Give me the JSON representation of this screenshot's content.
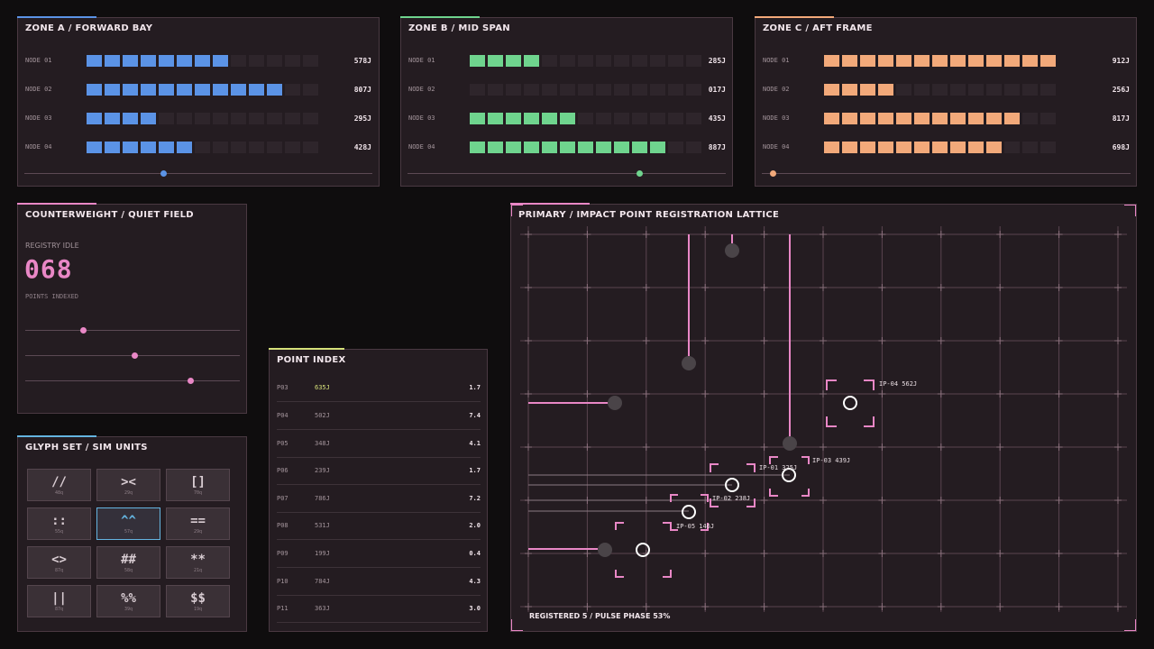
{
  "zones": [
    {
      "title": "ZONE A / FORWARD BAY",
      "color": "#5b93e6",
      "rows": [
        {
          "label": "NODE 01",
          "value": "578J",
          "filled": 8
        },
        {
          "label": "NODE 02",
          "value": "807J",
          "filled": 11
        },
        {
          "label": "NODE 03",
          "value": "295J",
          "filled": 4
        },
        {
          "label": "NODE 04",
          "value": "428J",
          "filled": 6
        }
      ],
      "slider": 0.4
    },
    {
      "title": "ZONE B / MID SPAN",
      "color": "#6fd48e",
      "rows": [
        {
          "label": "NODE 01",
          "value": "285J",
          "filled": 4
        },
        {
          "label": "NODE 02",
          "value": "017J",
          "filled": 0
        },
        {
          "label": "NODE 03",
          "value": "435J",
          "filled": 6
        },
        {
          "label": "NODE 04",
          "value": "887J",
          "filled": 11
        }
      ],
      "slider": 0.73
    },
    {
      "title": "ZONE C / AFT FRAME",
      "color": "#f2a97a",
      "rows": [
        {
          "label": "NODE 01",
          "value": "912J",
          "filled": 13
        },
        {
          "label": "NODE 02",
          "value": "256J",
          "filled": 4
        },
        {
          "label": "NODE 03",
          "value": "817J",
          "filled": 11
        },
        {
          "label": "NODE 04",
          "value": "698J",
          "filled": 10
        }
      ],
      "slider": 0.03
    }
  ],
  "counterweight": {
    "title": "COUNTERWEIGHT / QUIET FIELD",
    "status": "REGISTRY IDLE",
    "count": "068",
    "caption": "POINTS INDEXED",
    "accent": "#e987c6",
    "sliders": [
      0.27,
      0.51,
      0.77
    ]
  },
  "glyphs": {
    "title": "GLYPH SET / SIM UNITS",
    "accent": "#64b4e0",
    "items": [
      {
        "symbol": "//",
        "unit": "48q"
      },
      {
        "symbol": "><",
        "unit": "29q"
      },
      {
        "symbol": "[]",
        "unit": "70q"
      },
      {
        "symbol": "::",
        "unit": "55q"
      },
      {
        "symbol": "^^",
        "unit": "57q",
        "selected": true
      },
      {
        "symbol": "==",
        "unit": "29q"
      },
      {
        "symbol": "<>",
        "unit": "87q"
      },
      {
        "symbol": "##",
        "unit": "58q"
      },
      {
        "symbol": "**",
        "unit": "21q"
      },
      {
        "symbol": "||",
        "unit": "87q"
      },
      {
        "symbol": "%%",
        "unit": "39q"
      },
      {
        "symbol": "$$",
        "unit": "19q"
      }
    ]
  },
  "point_index": {
    "title": "POINT INDEX",
    "accent": "#d6e07a",
    "rows": [
      {
        "id": "P03",
        "energy": "635J",
        "score": "1.7",
        "highlight": true
      },
      {
        "id": "P04",
        "energy": "502J",
        "score": "7.4"
      },
      {
        "id": "P05",
        "energy": "348J",
        "score": "4.1"
      },
      {
        "id": "P06",
        "energy": "239J",
        "score": "1.7"
      },
      {
        "id": "P07",
        "energy": "786J",
        "score": "7.2"
      },
      {
        "id": "P08",
        "energy": "531J",
        "score": "2.0"
      },
      {
        "id": "P09",
        "energy": "199J",
        "score": "0.4"
      },
      {
        "id": "P10",
        "energy": "784J",
        "score": "4.3"
      },
      {
        "id": "P11",
        "energy": "363J",
        "score": "3.0"
      }
    ]
  },
  "lattice": {
    "title": "PRIMARY / IMPACT POINT REGISTRATION LATTICE",
    "footer": "REGISTERED 5 / PULSE PHASE 53%",
    "accent": "#e987c6",
    "labels": [
      "IP-04 562J",
      "IP-01 325J",
      "IP-03 439J",
      "IP-02 238J",
      "IP-05 146J"
    ]
  }
}
